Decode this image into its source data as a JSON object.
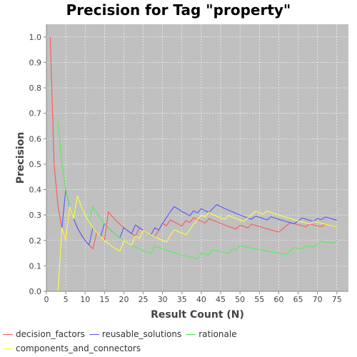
{
  "chart_data": {
    "type": "line",
    "title": "Precision for Tag \"property\"",
    "xlabel": "Result Count (N)",
    "ylabel": "Precision",
    "xlim": [
      0,
      78
    ],
    "ylim": [
      0,
      1.05
    ],
    "xticks": [
      0,
      5,
      10,
      15,
      20,
      25,
      30,
      35,
      40,
      45,
      50,
      55,
      60,
      65,
      70,
      75
    ],
    "yticks": [
      0.0,
      0.1,
      0.2,
      0.3,
      0.4,
      0.5,
      0.6,
      0.7,
      0.8,
      0.9,
      1.0
    ],
    "grid": true,
    "legend_position": "bottom",
    "background_color": "#c0c0c0",
    "series": [
      {
        "name": "decision_factors",
        "color": "#ff5555",
        "points": [
          [
            1,
            1.0
          ],
          [
            2,
            0.5
          ],
          [
            3,
            0.333
          ],
          [
            4,
            0.25
          ],
          [
            5,
            0.2
          ],
          [
            6,
            0.333
          ],
          [
            7,
            0.286
          ],
          [
            8,
            0.25
          ],
          [
            9,
            0.222
          ],
          [
            10,
            0.2
          ],
          [
            11,
            0.182
          ],
          [
            12,
            0.167
          ],
          [
            13,
            0.231
          ],
          [
            14,
            0.214
          ],
          [
            15,
            0.2
          ],
          [
            16,
            0.313
          ],
          [
            17,
            0.294
          ],
          [
            18,
            0.278
          ],
          [
            19,
            0.263
          ],
          [
            20,
            0.25
          ],
          [
            21,
            0.238
          ],
          [
            22,
            0.227
          ],
          [
            23,
            0.217
          ],
          [
            24,
            0.25
          ],
          [
            25,
            0.24
          ],
          [
            26,
            0.231
          ],
          [
            27,
            0.222
          ],
          [
            28,
            0.214
          ],
          [
            29,
            0.241
          ],
          [
            30,
            0.267
          ],
          [
            31,
            0.258
          ],
          [
            32,
            0.281
          ],
          [
            33,
            0.273
          ],
          [
            34,
            0.265
          ],
          [
            35,
            0.257
          ],
          [
            36,
            0.278
          ],
          [
            37,
            0.27
          ],
          [
            38,
            0.289
          ],
          [
            39,
            0.282
          ],
          [
            40,
            0.275
          ],
          [
            41,
            0.268
          ],
          [
            42,
            0.286
          ],
          [
            43,
            0.279
          ],
          [
            44,
            0.273
          ],
          [
            45,
            0.267
          ],
          [
            46,
            0.261
          ],
          [
            47,
            0.255
          ],
          [
            48,
            0.25
          ],
          [
            49,
            0.245
          ],
          [
            50,
            0.26
          ],
          [
            51,
            0.255
          ],
          [
            52,
            0.25
          ],
          [
            53,
            0.264
          ],
          [
            54,
            0.259
          ],
          [
            55,
            0.255
          ],
          [
            56,
            0.25
          ],
          [
            57,
            0.246
          ],
          [
            58,
            0.241
          ],
          [
            59,
            0.237
          ],
          [
            60,
            0.233
          ],
          [
            61,
            0.246
          ],
          [
            62,
            0.258
          ],
          [
            63,
            0.27
          ],
          [
            64,
            0.266
          ],
          [
            65,
            0.262
          ],
          [
            66,
            0.258
          ],
          [
            67,
            0.254
          ],
          [
            68,
            0.265
          ],
          [
            69,
            0.261
          ],
          [
            70,
            0.257
          ],
          [
            71,
            0.254
          ],
          [
            72,
            0.264
          ],
          [
            73,
            0.26
          ],
          [
            74,
            0.257
          ],
          [
            75,
            0.253
          ]
        ]
      },
      {
        "name": "reusable_solutions",
        "color": "#5555ff",
        "points": [
          [
            4,
            0.25
          ],
          [
            5,
            0.4
          ],
          [
            6,
            0.333
          ],
          [
            7,
            0.286
          ],
          [
            8,
            0.25
          ],
          [
            9,
            0.222
          ],
          [
            10,
            0.2
          ],
          [
            11,
            0.182
          ],
          [
            12,
            0.25
          ],
          [
            13,
            0.231
          ],
          [
            14,
            0.214
          ],
          [
            15,
            0.267
          ],
          [
            16,
            0.25
          ],
          [
            17,
            0.235
          ],
          [
            18,
            0.222
          ],
          [
            19,
            0.211
          ],
          [
            20,
            0.25
          ],
          [
            21,
            0.238
          ],
          [
            22,
            0.227
          ],
          [
            23,
            0.261
          ],
          [
            24,
            0.25
          ],
          [
            25,
            0.24
          ],
          [
            26,
            0.231
          ],
          [
            27,
            0.222
          ],
          [
            28,
            0.25
          ],
          [
            29,
            0.241
          ],
          [
            30,
            0.267
          ],
          [
            31,
            0.29
          ],
          [
            32,
            0.313
          ],
          [
            33,
            0.333
          ],
          [
            34,
            0.324
          ],
          [
            35,
            0.314
          ],
          [
            36,
            0.306
          ],
          [
            37,
            0.297
          ],
          [
            38,
            0.316
          ],
          [
            39,
            0.308
          ],
          [
            40,
            0.325
          ],
          [
            41,
            0.317
          ],
          [
            42,
            0.31
          ],
          [
            43,
            0.326
          ],
          [
            44,
            0.341
          ],
          [
            45,
            0.333
          ],
          [
            46,
            0.326
          ],
          [
            47,
            0.319
          ],
          [
            48,
            0.313
          ],
          [
            49,
            0.306
          ],
          [
            50,
            0.3
          ],
          [
            51,
            0.294
          ],
          [
            52,
            0.288
          ],
          [
            53,
            0.283
          ],
          [
            54,
            0.296
          ],
          [
            55,
            0.291
          ],
          [
            56,
            0.286
          ],
          [
            57,
            0.281
          ],
          [
            58,
            0.293
          ],
          [
            59,
            0.288
          ],
          [
            60,
            0.283
          ],
          [
            61,
            0.279
          ],
          [
            62,
            0.274
          ],
          [
            63,
            0.27
          ],
          [
            64,
            0.266
          ],
          [
            65,
            0.277
          ],
          [
            66,
            0.288
          ],
          [
            67,
            0.284
          ],
          [
            68,
            0.279
          ],
          [
            69,
            0.275
          ],
          [
            70,
            0.286
          ],
          [
            71,
            0.282
          ],
          [
            72,
            0.292
          ],
          [
            73,
            0.288
          ],
          [
            74,
            0.284
          ],
          [
            75,
            0.28
          ]
        ]
      },
      {
        "name": "rationale",
        "color": "#55ee55",
        "points": [
          [
            3,
            0.667
          ],
          [
            4,
            0.5
          ],
          [
            5,
            0.4
          ],
          [
            6,
            0.333
          ],
          [
            7,
            0.286
          ],
          [
            8,
            0.375
          ],
          [
            9,
            0.333
          ],
          [
            10,
            0.3
          ],
          [
            11,
            0.273
          ],
          [
            12,
            0.333
          ],
          [
            13,
            0.308
          ],
          [
            14,
            0.286
          ],
          [
            15,
            0.267
          ],
          [
            16,
            0.25
          ],
          [
            17,
            0.235
          ],
          [
            18,
            0.222
          ],
          [
            19,
            0.211
          ],
          [
            20,
            0.2
          ],
          [
            21,
            0.19
          ],
          [
            22,
            0.182
          ],
          [
            23,
            0.174
          ],
          [
            24,
            0.167
          ],
          [
            25,
            0.16
          ],
          [
            26,
            0.154
          ],
          [
            27,
            0.148
          ],
          [
            28,
            0.179
          ],
          [
            29,
            0.172
          ],
          [
            30,
            0.167
          ],
          [
            31,
            0.161
          ],
          [
            32,
            0.156
          ],
          [
            33,
            0.152
          ],
          [
            34,
            0.147
          ],
          [
            35,
            0.143
          ],
          [
            36,
            0.139
          ],
          [
            37,
            0.135
          ],
          [
            38,
            0.132
          ],
          [
            39,
            0.128
          ],
          [
            40,
            0.15
          ],
          [
            41,
            0.146
          ],
          [
            42,
            0.143
          ],
          [
            43,
            0.163
          ],
          [
            44,
            0.159
          ],
          [
            45,
            0.156
          ],
          [
            46,
            0.152
          ],
          [
            47,
            0.149
          ],
          [
            48,
            0.167
          ],
          [
            49,
            0.163
          ],
          [
            50,
            0.18
          ],
          [
            51,
            0.176
          ],
          [
            52,
            0.173
          ],
          [
            53,
            0.17
          ],
          [
            54,
            0.167
          ],
          [
            55,
            0.164
          ],
          [
            56,
            0.161
          ],
          [
            57,
            0.158
          ],
          [
            58,
            0.155
          ],
          [
            59,
            0.153
          ],
          [
            60,
            0.15
          ],
          [
            61,
            0.148
          ],
          [
            62,
            0.145
          ],
          [
            63,
            0.159
          ],
          [
            64,
            0.172
          ],
          [
            65,
            0.169
          ],
          [
            66,
            0.167
          ],
          [
            67,
            0.179
          ],
          [
            68,
            0.176
          ],
          [
            69,
            0.174
          ],
          [
            70,
            0.186
          ],
          [
            71,
            0.197
          ],
          [
            72,
            0.194
          ],
          [
            73,
            0.192
          ],
          [
            74,
            0.189
          ],
          [
            75,
            0.2
          ]
        ]
      },
      {
        "name": "components_and_connectors",
        "color": "#ffff44",
        "points": [
          [
            3,
            0.0
          ],
          [
            4,
            0.25
          ],
          [
            5,
            0.2
          ],
          [
            6,
            0.333
          ],
          [
            7,
            0.286
          ],
          [
            8,
            0.375
          ],
          [
            9,
            0.333
          ],
          [
            10,
            0.3
          ],
          [
            11,
            0.273
          ],
          [
            12,
            0.25
          ],
          [
            13,
            0.231
          ],
          [
            14,
            0.214
          ],
          [
            15,
            0.2
          ],
          [
            16,
            0.188
          ],
          [
            17,
            0.176
          ],
          [
            18,
            0.167
          ],
          [
            19,
            0.158
          ],
          [
            20,
            0.2
          ],
          [
            21,
            0.19
          ],
          [
            22,
            0.182
          ],
          [
            23,
            0.217
          ],
          [
            24,
            0.208
          ],
          [
            25,
            0.24
          ],
          [
            26,
            0.231
          ],
          [
            27,
            0.222
          ],
          [
            28,
            0.214
          ],
          [
            29,
            0.207
          ],
          [
            30,
            0.2
          ],
          [
            31,
            0.194
          ],
          [
            32,
            0.219
          ],
          [
            33,
            0.242
          ],
          [
            34,
            0.235
          ],
          [
            35,
            0.229
          ],
          [
            36,
            0.222
          ],
          [
            37,
            0.243
          ],
          [
            38,
            0.263
          ],
          [
            39,
            0.282
          ],
          [
            40,
            0.3
          ],
          [
            41,
            0.293
          ],
          [
            42,
            0.31
          ],
          [
            43,
            0.302
          ],
          [
            44,
            0.295
          ],
          [
            45,
            0.289
          ],
          [
            46,
            0.283
          ],
          [
            47,
            0.298
          ],
          [
            48,
            0.292
          ],
          [
            49,
            0.286
          ],
          [
            50,
            0.28
          ],
          [
            51,
            0.275
          ],
          [
            52,
            0.288
          ],
          [
            53,
            0.302
          ],
          [
            54,
            0.315
          ],
          [
            55,
            0.309
          ],
          [
            56,
            0.304
          ],
          [
            57,
            0.316
          ],
          [
            58,
            0.31
          ],
          [
            59,
            0.305
          ],
          [
            60,
            0.3
          ],
          [
            61,
            0.295
          ],
          [
            62,
            0.29
          ],
          [
            63,
            0.286
          ],
          [
            64,
            0.281
          ],
          [
            65,
            0.277
          ],
          [
            66,
            0.273
          ],
          [
            67,
            0.269
          ],
          [
            68,
            0.265
          ],
          [
            69,
            0.275
          ],
          [
            70,
            0.271
          ],
          [
            71,
            0.268
          ],
          [
            72,
            0.264
          ],
          [
            73,
            0.26
          ],
          [
            74,
            0.257
          ],
          [
            75,
            0.253
          ]
        ]
      }
    ]
  }
}
